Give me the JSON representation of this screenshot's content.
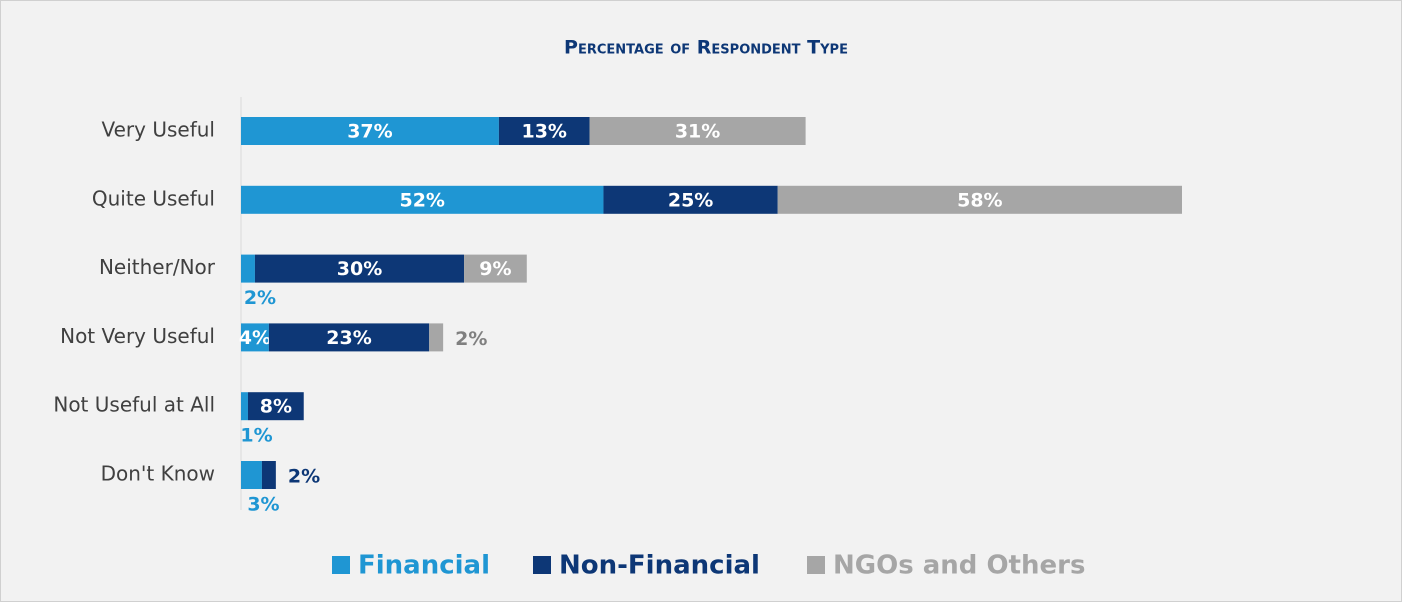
{
  "chart_data": {
    "type": "stacked-bar-horizontal",
    "title": "Percentage of Respondent Type",
    "categories": [
      "Very Useful",
      "Quite Useful",
      "Neither/Nor",
      "Not Very Useful",
      "Not Useful at All",
      "Don't Know"
    ],
    "series": [
      {
        "name": "Financial",
        "color": "#1f96d3",
        "values": [
          37,
          52,
          2,
          4,
          1,
          3
        ],
        "value_labels": [
          "37%",
          "52%",
          "2%",
          "4%",
          "1%",
          "3%"
        ]
      },
      {
        "name": "Non-Financial",
        "color": "#0d3776",
        "values": [
          13,
          25,
          30,
          23,
          8,
          2
        ],
        "value_labels": [
          "13%",
          "25%",
          "30%",
          "23%",
          "8%",
          "2%"
        ]
      },
      {
        "name": "NGOs and Others",
        "color": "#a6a6a6",
        "values": [
          31,
          58,
          9,
          2,
          0,
          0
        ],
        "value_labels": [
          "31%",
          "58%",
          "9%",
          "2%",
          null,
          null
        ]
      }
    ],
    "legend": "bottom"
  }
}
